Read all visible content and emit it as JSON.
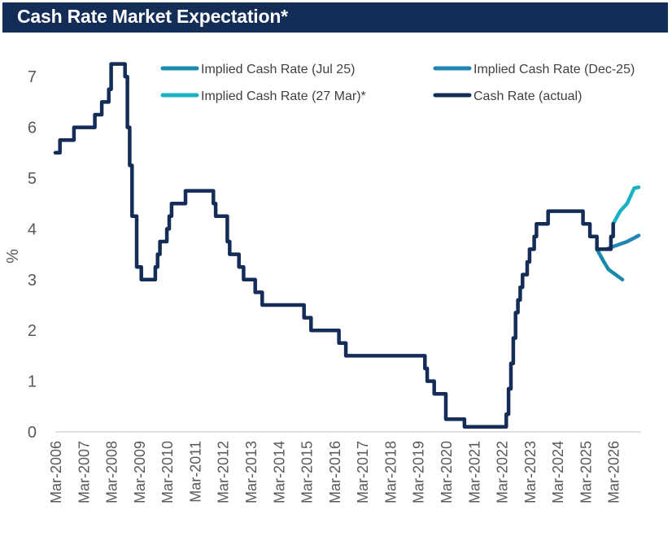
{
  "header": {
    "title": "Cash Rate Market Expectation*"
  },
  "chart_data": {
    "type": "line",
    "title": "Cash Rate Market Expectation*",
    "xlabel": "",
    "ylabel": "%",
    "ylim": [
      0,
      7.5
    ],
    "xlim": [
      "2006-03",
      "2027-03"
    ],
    "grid": false,
    "legend_position": "top",
    "y_ticks": [
      "0",
      "1",
      "2",
      "3",
      "4",
      "5",
      "6",
      "7"
    ],
    "x_ticks": [
      "Mar-2006",
      "Mar-2007",
      "Mar-2008",
      "Mar-2009",
      "Mar-2010",
      "Mar-2011",
      "Mar-2012",
      "Mar-2013",
      "Mar-2014",
      "Mar-2015",
      "Mar-2016",
      "Mar-2017",
      "Mar-2018",
      "Mar-2019",
      "Mar-2020",
      "Mar-2021",
      "Mar-2022",
      "Mar-2023",
      "Mar-2024",
      "Mar-2025",
      "Mar-2026"
    ],
    "series": [
      {
        "name": "Implied Cash Rate (Jul 25)",
        "color": "#1a8aaa",
        "points": [
          [
            "2025-08",
            3.6
          ],
          [
            "2025-11",
            3.35
          ],
          [
            "2026-01",
            3.2
          ],
          [
            "2026-04",
            3.1
          ],
          [
            "2026-07",
            3.0
          ]
        ]
      },
      {
        "name": "Implied Cash Rate (Dec-25)",
        "color": "#1f85b5",
        "points": [
          [
            "2025-12",
            3.6
          ],
          [
            "2026-03",
            3.65
          ],
          [
            "2026-06",
            3.7
          ],
          [
            "2026-09",
            3.75
          ],
          [
            "2026-12",
            3.82
          ],
          [
            "2027-02",
            3.87
          ]
        ]
      },
      {
        "name": "Implied Cash Rate (27 Mar)*",
        "color": "#17b3c4",
        "points": [
          [
            "2026-03",
            4.1
          ],
          [
            "2026-06",
            4.35
          ],
          [
            "2026-09",
            4.5
          ],
          [
            "2026-12",
            4.8
          ],
          [
            "2027-02",
            4.82
          ]
        ]
      },
      {
        "name": "Cash Rate (actual)",
        "color": "#142d57",
        "points": [
          [
            "2006-03",
            5.5
          ],
          [
            "2006-05",
            5.75
          ],
          [
            "2006-11",
            6.0
          ],
          [
            "2007-08",
            6.25
          ],
          [
            "2007-11",
            6.5
          ],
          [
            "2008-02",
            6.75
          ],
          [
            "2008-03",
            7.25
          ],
          [
            "2008-09",
            7.0
          ],
          [
            "2008-10",
            6.0
          ],
          [
            "2008-11",
            5.25
          ],
          [
            "2008-12",
            4.25
          ],
          [
            "2009-02",
            3.25
          ],
          [
            "2009-04",
            3.0
          ],
          [
            "2009-10",
            3.25
          ],
          [
            "2009-11",
            3.5
          ],
          [
            "2009-12",
            3.75
          ],
          [
            "2010-03",
            4.0
          ],
          [
            "2010-04",
            4.25
          ],
          [
            "2010-05",
            4.5
          ],
          [
            "2010-11",
            4.75
          ],
          [
            "2011-11",
            4.5
          ],
          [
            "2011-12",
            4.25
          ],
          [
            "2012-05",
            3.75
          ],
          [
            "2012-06",
            3.5
          ],
          [
            "2012-10",
            3.25
          ],
          [
            "2012-12",
            3.0
          ],
          [
            "2013-05",
            2.75
          ],
          [
            "2013-08",
            2.5
          ],
          [
            "2015-02",
            2.25
          ],
          [
            "2015-05",
            2.0
          ],
          [
            "2016-05",
            1.75
          ],
          [
            "2016-08",
            1.5
          ],
          [
            "2019-06",
            1.25
          ],
          [
            "2019-07",
            1.0
          ],
          [
            "2019-10",
            0.75
          ],
          [
            "2020-03",
            0.25
          ],
          [
            "2020-11",
            0.1
          ],
          [
            "2022-05",
            0.35
          ],
          [
            "2022-06",
            0.85
          ],
          [
            "2022-07",
            1.35
          ],
          [
            "2022-08",
            1.85
          ],
          [
            "2022-09",
            2.35
          ],
          [
            "2022-10",
            2.6
          ],
          [
            "2022-11",
            2.85
          ],
          [
            "2022-12",
            3.1
          ],
          [
            "2023-02",
            3.35
          ],
          [
            "2023-03",
            3.6
          ],
          [
            "2023-05",
            3.85
          ],
          [
            "2023-06",
            4.1
          ],
          [
            "2023-11",
            4.35
          ],
          [
            "2025-02",
            4.1
          ],
          [
            "2025-05",
            3.85
          ],
          [
            "2025-08",
            3.6
          ],
          [
            "2026-02",
            3.85
          ],
          [
            "2026-03",
            4.1
          ]
        ]
      }
    ]
  }
}
